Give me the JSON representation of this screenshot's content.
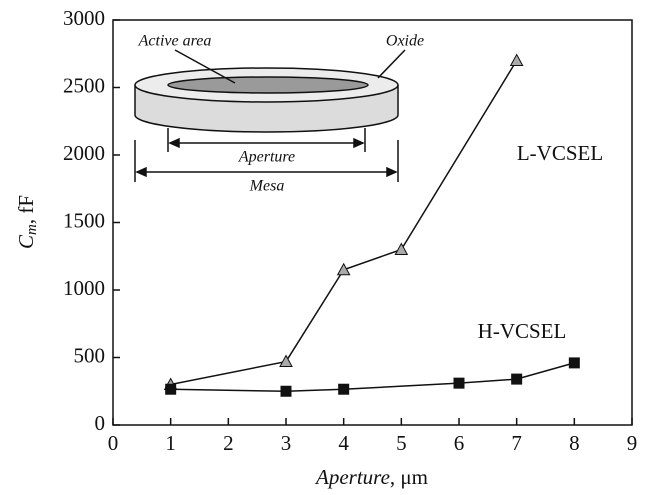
{
  "chart_data": {
    "type": "line",
    "x_label": [
      "Aperture",
      ", μm"
    ],
    "y_label": [
      "C",
      "m",
      ", fF"
    ],
    "xlim": [
      0,
      9
    ],
    "xticks": [
      0,
      1,
      2,
      3,
      4,
      5,
      6,
      7,
      8,
      9
    ],
    "ylim": [
      0,
      3000
    ],
    "yticks": [
      0,
      500,
      1000,
      1500,
      2000,
      2500,
      3000
    ],
    "series": [
      {
        "name": "L-VCSEL",
        "color": "#aaaaaa",
        "marker": "triangle",
        "x": [
          1,
          3,
          4,
          5,
          7
        ],
        "values": [
          300,
          470,
          1150,
          1300,
          2700
        ]
      },
      {
        "name": "H-VCSEL",
        "color": "#111111",
        "marker": "square",
        "x": [
          1,
          3,
          4,
          6,
          7,
          8
        ],
        "values": [
          265,
          250,
          265,
          310,
          340,
          460
        ]
      }
    ],
    "inset_labels": {
      "active_area": "Active area",
      "oxide": "Oxide",
      "aperture": "Aperture",
      "mesa": "Mesa"
    }
  }
}
